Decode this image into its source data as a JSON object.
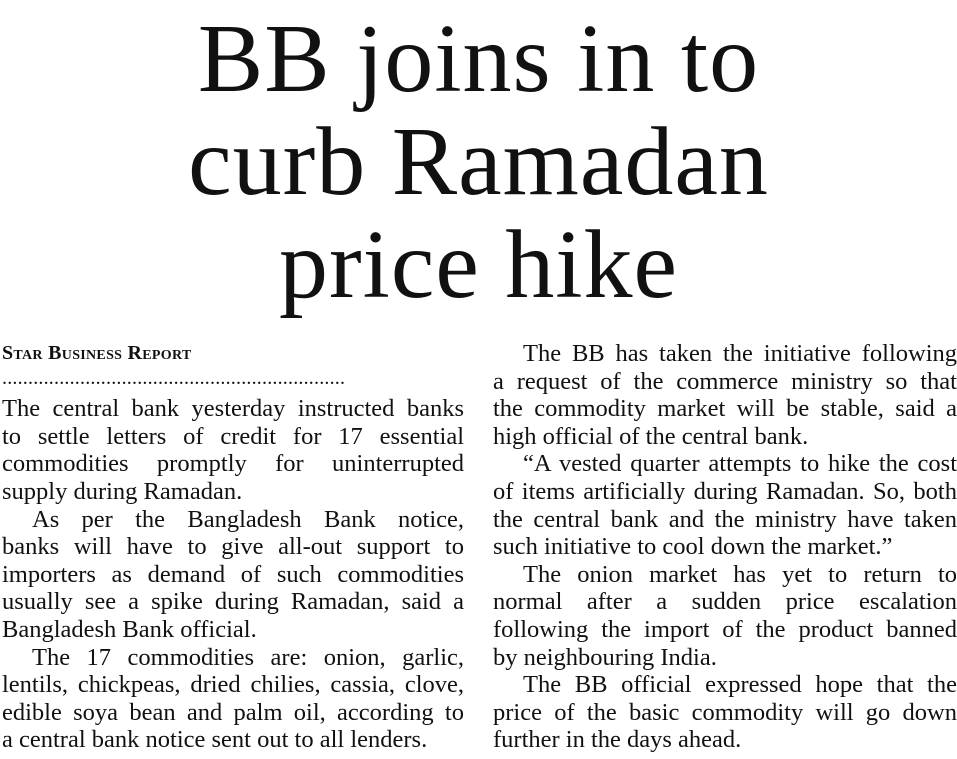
{
  "headline": {
    "lines": [
      "BB joins in to",
      "curb Ramadan",
      "price hike"
    ]
  },
  "byline": "Star Business Report",
  "separator": "..................................................................",
  "left_column": [
    [
      "The central bank yesterday instructed banks",
      "to settle letters of credit for 17 essential",
      "commodities promptly for uninterrupted",
      "supply during Ramadan."
    ],
    [
      "As per the Bangladesh Bank notice,",
      "banks will have to give all-out support to",
      "importers as demand of such commodities",
      "usually see a spike during Ramadan, said a",
      "Bangladesh Bank official."
    ],
    [
      "The 17 commodities are: onion, garlic,",
      "lentils, chickpeas, dried chilies, cassia, clove,",
      "edible soya bean and palm oil, according to",
      "a central bank notice sent out to all lenders."
    ]
  ],
  "right_column": [
    [
      "The BB has taken the initiative following",
      "a request of the commerce ministry so that",
      "the commodity market will be stable, said a",
      "high official of the central bank."
    ],
    [
      "“A vested quarter attempts to hike the cost",
      "of items artificially during Ramadan. So, both",
      "the central bank and the ministry have taken",
      "such initiative to cool down the market.”"
    ],
    [
      "The onion market has yet to return to",
      "normal after a sudden price escalation",
      "following the import of the product banned",
      "by neighbouring India."
    ],
    [
      "The BB official expressed hope that the",
      "price of the basic commodity will go down",
      "further in the days ahead."
    ]
  ]
}
